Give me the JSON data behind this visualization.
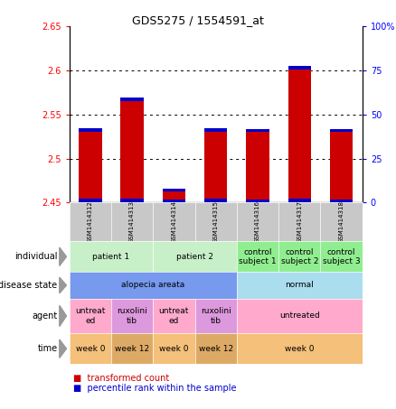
{
  "title": "GDS5275 / 1554591_at",
  "samples": [
    "GSM1414312",
    "GSM1414313",
    "GSM1414314",
    "GSM1414315",
    "GSM1414316",
    "GSM1414317",
    "GSM1414318"
  ],
  "red_values": [
    2.53,
    2.565,
    2.463,
    2.53,
    2.53,
    2.601,
    2.53
  ],
  "blue_heights": [
    0.004,
    0.004,
    0.003,
    0.004,
    0.003,
    0.004,
    0.003
  ],
  "y_min": 2.45,
  "y_max": 2.65,
  "y_ticks_left": [
    2.45,
    2.5,
    2.55,
    2.6,
    2.65
  ],
  "y_ticks_right_pct": [
    0,
    25,
    50,
    75,
    100
  ],
  "annotations": {
    "individual": {
      "label": "individual",
      "groups": [
        {
          "text": "patient 1",
          "cols": [
            0,
            1
          ],
          "color": "#c8f0c8"
        },
        {
          "text": "patient 2",
          "cols": [
            2,
            3
          ],
          "color": "#c8f0c8"
        },
        {
          "text": "control\nsubject 1",
          "cols": [
            4,
            4
          ],
          "color": "#90ee90"
        },
        {
          "text": "control\nsubject 2",
          "cols": [
            5,
            5
          ],
          "color": "#90ee90"
        },
        {
          "text": "control\nsubject 3",
          "cols": [
            6,
            6
          ],
          "color": "#90ee90"
        }
      ]
    },
    "disease_state": {
      "label": "disease state",
      "groups": [
        {
          "text": "alopecia areata",
          "cols": [
            0,
            3
          ],
          "color": "#7799ee"
        },
        {
          "text": "normal",
          "cols": [
            4,
            6
          ],
          "color": "#aaddee"
        }
      ]
    },
    "agent": {
      "label": "agent",
      "groups": [
        {
          "text": "untreat\ned",
          "cols": [
            0,
            0
          ],
          "color": "#ffaacc"
        },
        {
          "text": "ruxolini\ntib",
          "cols": [
            1,
            1
          ],
          "color": "#dd99dd"
        },
        {
          "text": "untreat\ned",
          "cols": [
            2,
            2
          ],
          "color": "#ffaacc"
        },
        {
          "text": "ruxolini\ntib",
          "cols": [
            3,
            3
          ],
          "color": "#dd99dd"
        },
        {
          "text": "untreated",
          "cols": [
            4,
            6
          ],
          "color": "#ffaacc"
        }
      ]
    },
    "time": {
      "label": "time",
      "groups": [
        {
          "text": "week 0",
          "cols": [
            0,
            0
          ],
          "color": "#f4c07a"
        },
        {
          "text": "week 12",
          "cols": [
            1,
            1
          ],
          "color": "#ddaa66"
        },
        {
          "text": "week 0",
          "cols": [
            2,
            2
          ],
          "color": "#f4c07a"
        },
        {
          "text": "week 12",
          "cols": [
            3,
            3
          ],
          "color": "#ddaa66"
        },
        {
          "text": "week 0",
          "cols": [
            4,
            6
          ],
          "color": "#f4c07a"
        }
      ]
    }
  },
  "bar_width": 0.55,
  "bar_color_red": "#cc0000",
  "bar_color_blue": "#0000cc",
  "sample_box_color": "#c8c8c8",
  "border_color": "#888888"
}
